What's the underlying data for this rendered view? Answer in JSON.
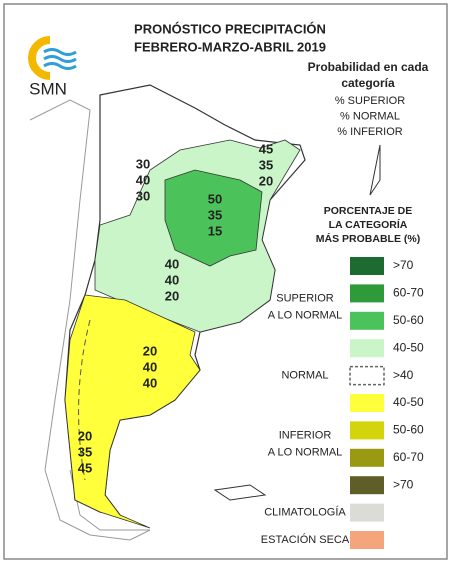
{
  "header": {
    "title_lines": [
      "PRONÓSTICO PRECIPITACIÓN",
      "FEBRERO-MARZO-ABRIL 2019"
    ],
    "logo": "SMN"
  },
  "key": {
    "title_lines": [
      "Probabilidad en cada",
      "categoría"
    ],
    "items": [
      "% SUPERIOR",
      "% NORMAL",
      "% INFERIOR"
    ]
  },
  "regions": [
    {
      "values": [
        30,
        40,
        30
      ]
    },
    {
      "values": [
        45,
        35,
        20
      ]
    },
    {
      "values": [
        50,
        35,
        15
      ]
    },
    {
      "values": [
        40,
        40,
        20
      ]
    },
    {
      "values": [
        20,
        40,
        40
      ]
    },
    {
      "values": [
        20,
        35,
        45
      ]
    }
  ],
  "legend": {
    "title_lines": [
      "PORCENTAJE DE",
      "LA CATEGORÍA",
      "MÁS PROBABLE (%)"
    ],
    "groups": [
      {
        "label_lines": [
          "SUPERIOR",
          "A LO NORMAL"
        ],
        "entries": [
          {
            "label": ">70",
            "color": "#1d6b30"
          },
          {
            "label": "60-70",
            "color": "#2e9a3a"
          },
          {
            "label": "50-60",
            "color": "#4cc35a"
          },
          {
            "label": "40-50",
            "color": "#c9f5c9"
          }
        ]
      },
      {
        "label_lines": [
          "NORMAL"
        ],
        "entries": [
          {
            "label": ">40",
            "color": "#ffffff",
            "border": "dashed"
          }
        ]
      },
      {
        "label_lines": [
          "INFERIOR",
          "A LO NORMAL"
        ],
        "entries": [
          {
            "label": "40-50",
            "color": "#ffff3c"
          },
          {
            "label": "50-60",
            "color": "#d4d40c"
          },
          {
            "label": "60-70",
            "color": "#9a9a12"
          },
          {
            "label": ">70",
            "color": "#5e5e28"
          }
        ]
      },
      {
        "label_lines": [
          "CLIMATOLOGÍA"
        ],
        "entries": [
          {
            "color": "#dcdcd6"
          }
        ]
      },
      {
        "label_lines": [
          "ESTACIÓN SECA"
        ],
        "entries": [
          {
            "color": "#f4a57c"
          }
        ]
      }
    ]
  }
}
